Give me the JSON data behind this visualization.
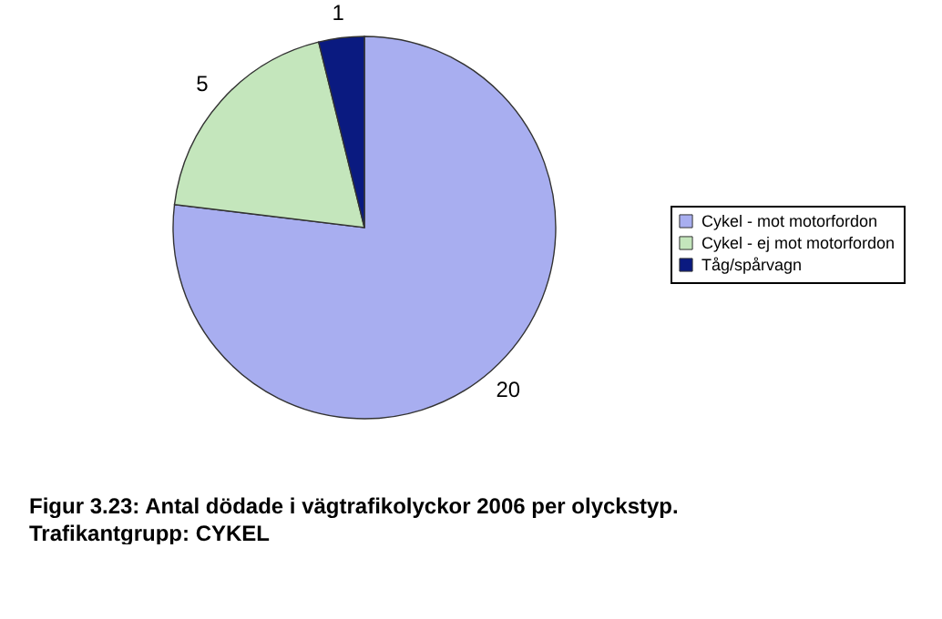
{
  "chart_data": {
    "type": "pie",
    "title": "Figur 3.23: Antal dödade i vägtrafikolyckor 2006 per olyckstyp.",
    "subtitle": "Trafikantgrupp: CYKEL",
    "categories": [
      "Cykel - mot motorfordon",
      "Cykel - ej mot motorfordon",
      "Tåg/spårvagn"
    ],
    "values": [
      20,
      5,
      1
    ],
    "colors": [
      "#a8aef0",
      "#c4e6bc",
      "#0a1a80"
    ],
    "data_labels": true,
    "legend": "right"
  }
}
